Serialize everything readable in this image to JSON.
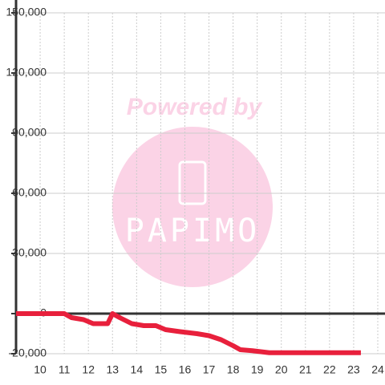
{
  "chart_data": {
    "type": "line",
    "watermark": [
      "Powered by",
      "PAPIMO"
    ],
    "x": [
      9,
      11,
      11.3,
      11.8,
      12.2,
      12.8,
      13.0,
      13.3,
      13.8,
      14.3,
      14.8,
      15.2,
      15.8,
      16.5,
      17.0,
      17.5,
      18.0,
      18.3,
      18.8,
      19.5,
      20,
      21,
      22,
      23.3
    ],
    "series": [
      {
        "color": "#e8203c",
        "values": [
          0,
          0,
          -2000,
          -3000,
          -5000,
          -5000,
          0,
          -2000,
          -5000,
          -6000,
          -6000,
          -8000,
          -9000,
          -10000,
          -11000,
          -13000,
          -16000,
          -18000,
          -18500,
          -19500,
          -19500,
          -19500,
          -19500,
          -19500
        ]
      }
    ],
    "xlim": [
      9,
      24.3
    ],
    "xticks": [
      10,
      11,
      12,
      13,
      14,
      15,
      16,
      17,
      18,
      19,
      20,
      21,
      22,
      23,
      24
    ],
    "ylim": [
      -20000,
      150000
    ],
    "yticks": [
      {
        "value": -20000,
        "label": "-20,000"
      },
      0,
      {
        "value": 30000,
        "label": "30,000"
      },
      {
        "value": 60000,
        "label": "60,000"
      },
      {
        "value": 90000,
        "label": "90,000"
      },
      {
        "value": 120000,
        "label": "120,000"
      },
      {
        "value": 150000,
        "label": "150,000"
      }
    ],
    "grid": true
  }
}
